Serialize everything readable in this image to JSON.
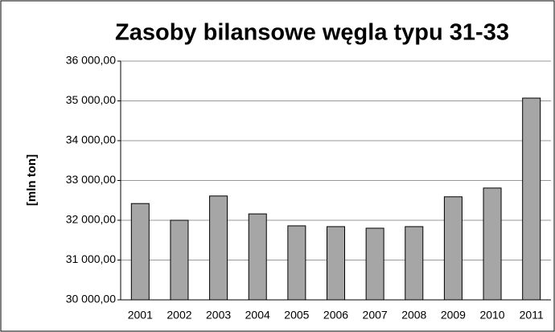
{
  "chart_data": {
    "type": "bar",
    "title": "Zasoby bilansowe węgla typu 31-33",
    "y_label": "[mln ton]",
    "categories": [
      "2001",
      "2002",
      "2003",
      "2004",
      "2005",
      "2006",
      "2007",
      "2008",
      "2009",
      "2010",
      "2011"
    ],
    "values": [
      32420,
      32000,
      32610,
      32160,
      31860,
      31840,
      31800,
      31840,
      32590,
      32810,
      35070
    ],
    "color": "#a6a6a6",
    "ylim": [
      30000,
      36000
    ],
    "yticks": [
      {
        "value": 30000,
        "label": "30 000,00"
      },
      {
        "value": 31000,
        "label": "31 000,00"
      },
      {
        "value": 32000,
        "label": "32 000,00"
      },
      {
        "value": 33000,
        "label": "33 000,00"
      },
      {
        "value": 34000,
        "label": "34 000,00"
      },
      {
        "value": 35000,
        "label": "35 000,00"
      },
      {
        "value": 36000,
        "label": "36 000,00"
      }
    ],
    "grid": true
  }
}
